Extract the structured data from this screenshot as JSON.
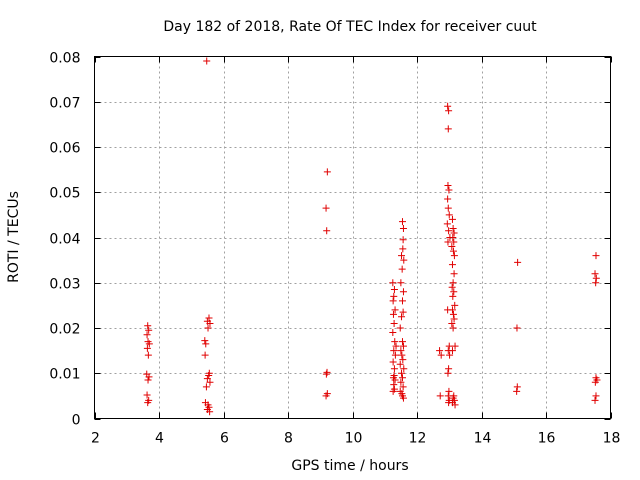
{
  "chart_data": {
    "type": "scatter",
    "title": "Day 182 of 2018, Rate Of TEC Index for receiver cuut",
    "xlabel": "GPS time / hours",
    "ylabel": "ROTI / TECUs",
    "xlim": [
      2,
      18
    ],
    "ylim": [
      0,
      0.08
    ],
    "xticks": [
      2,
      4,
      6,
      8,
      10,
      12,
      14,
      16,
      18
    ],
    "xtick_labels": [
      "2",
      "4",
      "6",
      "8",
      "10",
      "12",
      "14",
      "16",
      "18"
    ],
    "yticks": [
      0,
      0.01,
      0.02,
      0.03,
      0.04,
      0.05,
      0.06,
      0.07,
      0.08
    ],
    "ytick_labels": [
      "0",
      "0.01",
      "0.02",
      "0.03",
      "0.04",
      "0.05",
      "0.06",
      "0.07",
      "0.08"
    ],
    "grid": true,
    "marker": "+",
    "color": "#e00000",
    "series": [
      {
        "name": "ROTI",
        "points": [
          [
            3.65,
            0.0205
          ],
          [
            3.68,
            0.0195
          ],
          [
            3.63,
            0.0185
          ],
          [
            3.66,
            0.017
          ],
          [
            3.7,
            0.0165
          ],
          [
            3.64,
            0.0155
          ],
          [
            3.67,
            0.014
          ],
          [
            3.62,
            0.0098
          ],
          [
            3.69,
            0.0092
          ],
          [
            3.66,
            0.0085
          ],
          [
            3.63,
            0.0052
          ],
          [
            3.68,
            0.004
          ],
          [
            3.65,
            0.0035
          ],
          [
            5.48,
            0.079
          ],
          [
            5.55,
            0.0222
          ],
          [
            5.5,
            0.0215
          ],
          [
            5.58,
            0.021
          ],
          [
            5.52,
            0.02
          ],
          [
            5.42,
            0.0172
          ],
          [
            5.45,
            0.0165
          ],
          [
            5.43,
            0.014
          ],
          [
            5.56,
            0.01
          ],
          [
            5.54,
            0.0095
          ],
          [
            5.5,
            0.0088
          ],
          [
            5.58,
            0.008
          ],
          [
            5.47,
            0.007
          ],
          [
            5.44,
            0.0035
          ],
          [
            5.52,
            0.003
          ],
          [
            5.55,
            0.0025
          ],
          [
            5.5,
            0.002
          ],
          [
            5.57,
            0.0015
          ],
          [
            9.22,
            0.0545
          ],
          [
            9.18,
            0.0465
          ],
          [
            9.2,
            0.0415
          ],
          [
            9.21,
            0.0102
          ],
          [
            9.19,
            0.0098
          ],
          [
            9.22,
            0.0055
          ],
          [
            9.18,
            0.005
          ],
          [
            11.25,
            0.03
          ],
          [
            11.3,
            0.0285
          ],
          [
            11.28,
            0.027
          ],
          [
            11.26,
            0.026
          ],
          [
            11.32,
            0.024
          ],
          [
            11.27,
            0.023
          ],
          [
            11.29,
            0.021
          ],
          [
            11.25,
            0.019
          ],
          [
            11.31,
            0.017
          ],
          [
            11.35,
            0.016
          ],
          [
            11.28,
            0.015
          ],
          [
            11.33,
            0.014
          ],
          [
            11.26,
            0.0125
          ],
          [
            11.3,
            0.011
          ],
          [
            11.29,
            0.0095
          ],
          [
            11.27,
            0.009
          ],
          [
            11.32,
            0.0085
          ],
          [
            11.28,
            0.0075
          ],
          [
            11.3,
            0.0065
          ],
          [
            11.26,
            0.006
          ],
          [
            11.55,
            0.0435
          ],
          [
            11.58,
            0.042
          ],
          [
            11.57,
            0.0395
          ],
          [
            11.56,
            0.0375
          ],
          [
            11.52,
            0.036
          ],
          [
            11.59,
            0.035
          ],
          [
            11.54,
            0.033
          ],
          [
            11.5,
            0.03
          ],
          [
            11.58,
            0.028
          ],
          [
            11.55,
            0.026
          ],
          [
            11.57,
            0.0235
          ],
          [
            11.52,
            0.0225
          ],
          [
            11.48,
            0.02
          ],
          [
            11.55,
            0.017
          ],
          [
            11.58,
            0.016
          ],
          [
            11.5,
            0.015
          ],
          [
            11.53,
            0.014
          ],
          [
            11.56,
            0.013
          ],
          [
            11.48,
            0.012
          ],
          [
            11.59,
            0.011
          ],
          [
            11.52,
            0.01
          ],
          [
            11.55,
            0.009
          ],
          [
            11.5,
            0.008
          ],
          [
            11.57,
            0.007
          ],
          [
            11.48,
            0.006
          ],
          [
            11.53,
            0.0055
          ],
          [
            11.55,
            0.005
          ],
          [
            11.58,
            0.0045
          ],
          [
            12.7,
            0.015
          ],
          [
            12.75,
            0.014
          ],
          [
            12.72,
            0.005
          ],
          [
            12.95,
            0.069
          ],
          [
            12.98,
            0.068
          ],
          [
            12.97,
            0.064
          ],
          [
            12.96,
            0.0515
          ],
          [
            12.99,
            0.0505
          ],
          [
            12.95,
            0.0485
          ],
          [
            12.97,
            0.0465
          ],
          [
            13.0,
            0.045
          ],
          [
            12.94,
            0.043
          ],
          [
            12.98,
            0.0415
          ],
          [
            13.02,
            0.04
          ],
          [
            12.96,
            0.039
          ],
          [
            12.95,
            0.024
          ],
          [
            13.0,
            0.016
          ],
          [
            12.97,
            0.015
          ],
          [
            13.01,
            0.014
          ],
          [
            12.98,
            0.011
          ],
          [
            12.96,
            0.01
          ],
          [
            12.99,
            0.006
          ],
          [
            12.97,
            0.005
          ],
          [
            13.0,
            0.004
          ],
          [
            12.98,
            0.0035
          ],
          [
            13.1,
            0.044
          ],
          [
            13.12,
            0.042
          ],
          [
            13.15,
            0.041
          ],
          [
            13.11,
            0.04
          ],
          [
            13.14,
            0.039
          ],
          [
            13.08,
            0.038
          ],
          [
            13.13,
            0.037
          ],
          [
            13.16,
            0.036
          ],
          [
            13.1,
            0.034
          ],
          [
            13.15,
            0.032
          ],
          [
            13.12,
            0.03
          ],
          [
            13.09,
            0.029
          ],
          [
            13.14,
            0.028
          ],
          [
            13.11,
            0.027
          ],
          [
            13.17,
            0.025
          ],
          [
            13.1,
            0.024
          ],
          [
            13.13,
            0.023
          ],
          [
            13.15,
            0.022
          ],
          [
            13.08,
            0.021
          ],
          [
            13.12,
            0.02
          ],
          [
            13.18,
            0.016
          ],
          [
            13.1,
            0.015
          ],
          [
            13.14,
            0.005
          ],
          [
            13.12,
            0.0045
          ],
          [
            13.16,
            0.004
          ],
          [
            13.1,
            0.0035
          ],
          [
            13.18,
            0.003
          ],
          [
            15.12,
            0.0345
          ],
          [
            15.1,
            0.02
          ],
          [
            15.11,
            0.007
          ],
          [
            15.09,
            0.006
          ],
          [
            17.55,
            0.036
          ],
          [
            17.52,
            0.032
          ],
          [
            17.56,
            0.031
          ],
          [
            17.54,
            0.03
          ],
          [
            17.55,
            0.009
          ],
          [
            17.58,
            0.0085
          ],
          [
            17.53,
            0.008
          ],
          [
            17.55,
            0.005
          ],
          [
            17.52,
            0.004
          ]
        ]
      }
    ]
  }
}
